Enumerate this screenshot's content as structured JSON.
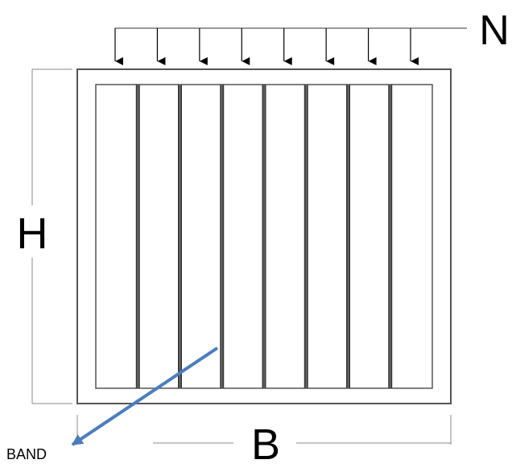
{
  "labels": {
    "load": "N",
    "height": "H",
    "width": "B",
    "band": "BAND"
  },
  "load_arrow_count": 8,
  "band_count": 7,
  "colors": {
    "line": "#000000",
    "band": "#3a3a3a",
    "frame": "#555555",
    "pointer": "#4a7dbf"
  }
}
